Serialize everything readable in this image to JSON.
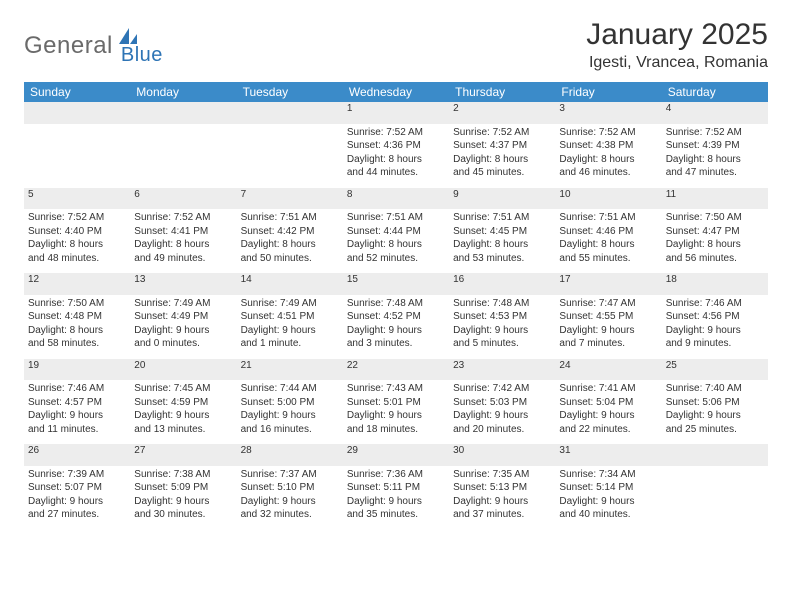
{
  "brand": {
    "part1": "General",
    "part2": "Blue"
  },
  "title": "January 2025",
  "location": "Igesti, Vrancea, Romania",
  "colors": {
    "header_bg": "#3b8bc9",
    "header_fg": "#ffffff",
    "row_border": "#2e74b5",
    "daynum_bg": "#ededed",
    "text": "#333333",
    "logo_gray": "#6a6a6a",
    "logo_blue": "#2e74b5",
    "page_bg": "#ffffff"
  },
  "day_headers": [
    "Sunday",
    "Monday",
    "Tuesday",
    "Wednesday",
    "Thursday",
    "Friday",
    "Saturday"
  ],
  "weeks": [
    {
      "nums": [
        "",
        "",
        "",
        "1",
        "2",
        "3",
        "4"
      ],
      "cells": [
        null,
        null,
        null,
        {
          "sunrise": "Sunrise: 7:52 AM",
          "sunset": "Sunset: 4:36 PM",
          "day1": "Daylight: 8 hours",
          "day2": "and 44 minutes."
        },
        {
          "sunrise": "Sunrise: 7:52 AM",
          "sunset": "Sunset: 4:37 PM",
          "day1": "Daylight: 8 hours",
          "day2": "and 45 minutes."
        },
        {
          "sunrise": "Sunrise: 7:52 AM",
          "sunset": "Sunset: 4:38 PM",
          "day1": "Daylight: 8 hours",
          "day2": "and 46 minutes."
        },
        {
          "sunrise": "Sunrise: 7:52 AM",
          "sunset": "Sunset: 4:39 PM",
          "day1": "Daylight: 8 hours",
          "day2": "and 47 minutes."
        }
      ]
    },
    {
      "nums": [
        "5",
        "6",
        "7",
        "8",
        "9",
        "10",
        "11"
      ],
      "cells": [
        {
          "sunrise": "Sunrise: 7:52 AM",
          "sunset": "Sunset: 4:40 PM",
          "day1": "Daylight: 8 hours",
          "day2": "and 48 minutes."
        },
        {
          "sunrise": "Sunrise: 7:52 AM",
          "sunset": "Sunset: 4:41 PM",
          "day1": "Daylight: 8 hours",
          "day2": "and 49 minutes."
        },
        {
          "sunrise": "Sunrise: 7:51 AM",
          "sunset": "Sunset: 4:42 PM",
          "day1": "Daylight: 8 hours",
          "day2": "and 50 minutes."
        },
        {
          "sunrise": "Sunrise: 7:51 AM",
          "sunset": "Sunset: 4:44 PM",
          "day1": "Daylight: 8 hours",
          "day2": "and 52 minutes."
        },
        {
          "sunrise": "Sunrise: 7:51 AM",
          "sunset": "Sunset: 4:45 PM",
          "day1": "Daylight: 8 hours",
          "day2": "and 53 minutes."
        },
        {
          "sunrise": "Sunrise: 7:51 AM",
          "sunset": "Sunset: 4:46 PM",
          "day1": "Daylight: 8 hours",
          "day2": "and 55 minutes."
        },
        {
          "sunrise": "Sunrise: 7:50 AM",
          "sunset": "Sunset: 4:47 PM",
          "day1": "Daylight: 8 hours",
          "day2": "and 56 minutes."
        }
      ]
    },
    {
      "nums": [
        "12",
        "13",
        "14",
        "15",
        "16",
        "17",
        "18"
      ],
      "cells": [
        {
          "sunrise": "Sunrise: 7:50 AM",
          "sunset": "Sunset: 4:48 PM",
          "day1": "Daylight: 8 hours",
          "day2": "and 58 minutes."
        },
        {
          "sunrise": "Sunrise: 7:49 AM",
          "sunset": "Sunset: 4:49 PM",
          "day1": "Daylight: 9 hours",
          "day2": "and 0 minutes."
        },
        {
          "sunrise": "Sunrise: 7:49 AM",
          "sunset": "Sunset: 4:51 PM",
          "day1": "Daylight: 9 hours",
          "day2": "and 1 minute."
        },
        {
          "sunrise": "Sunrise: 7:48 AM",
          "sunset": "Sunset: 4:52 PM",
          "day1": "Daylight: 9 hours",
          "day2": "and 3 minutes."
        },
        {
          "sunrise": "Sunrise: 7:48 AM",
          "sunset": "Sunset: 4:53 PM",
          "day1": "Daylight: 9 hours",
          "day2": "and 5 minutes."
        },
        {
          "sunrise": "Sunrise: 7:47 AM",
          "sunset": "Sunset: 4:55 PM",
          "day1": "Daylight: 9 hours",
          "day2": "and 7 minutes."
        },
        {
          "sunrise": "Sunrise: 7:46 AM",
          "sunset": "Sunset: 4:56 PM",
          "day1": "Daylight: 9 hours",
          "day2": "and 9 minutes."
        }
      ]
    },
    {
      "nums": [
        "19",
        "20",
        "21",
        "22",
        "23",
        "24",
        "25"
      ],
      "cells": [
        {
          "sunrise": "Sunrise: 7:46 AM",
          "sunset": "Sunset: 4:57 PM",
          "day1": "Daylight: 9 hours",
          "day2": "and 11 minutes."
        },
        {
          "sunrise": "Sunrise: 7:45 AM",
          "sunset": "Sunset: 4:59 PM",
          "day1": "Daylight: 9 hours",
          "day2": "and 13 minutes."
        },
        {
          "sunrise": "Sunrise: 7:44 AM",
          "sunset": "Sunset: 5:00 PM",
          "day1": "Daylight: 9 hours",
          "day2": "and 16 minutes."
        },
        {
          "sunrise": "Sunrise: 7:43 AM",
          "sunset": "Sunset: 5:01 PM",
          "day1": "Daylight: 9 hours",
          "day2": "and 18 minutes."
        },
        {
          "sunrise": "Sunrise: 7:42 AM",
          "sunset": "Sunset: 5:03 PM",
          "day1": "Daylight: 9 hours",
          "day2": "and 20 minutes."
        },
        {
          "sunrise": "Sunrise: 7:41 AM",
          "sunset": "Sunset: 5:04 PM",
          "day1": "Daylight: 9 hours",
          "day2": "and 22 minutes."
        },
        {
          "sunrise": "Sunrise: 7:40 AM",
          "sunset": "Sunset: 5:06 PM",
          "day1": "Daylight: 9 hours",
          "day2": "and 25 minutes."
        }
      ]
    },
    {
      "nums": [
        "26",
        "27",
        "28",
        "29",
        "30",
        "31",
        ""
      ],
      "cells": [
        {
          "sunrise": "Sunrise: 7:39 AM",
          "sunset": "Sunset: 5:07 PM",
          "day1": "Daylight: 9 hours",
          "day2": "and 27 minutes."
        },
        {
          "sunrise": "Sunrise: 7:38 AM",
          "sunset": "Sunset: 5:09 PM",
          "day1": "Daylight: 9 hours",
          "day2": "and 30 minutes."
        },
        {
          "sunrise": "Sunrise: 7:37 AM",
          "sunset": "Sunset: 5:10 PM",
          "day1": "Daylight: 9 hours",
          "day2": "and 32 minutes."
        },
        {
          "sunrise": "Sunrise: 7:36 AM",
          "sunset": "Sunset: 5:11 PM",
          "day1": "Daylight: 9 hours",
          "day2": "and 35 minutes."
        },
        {
          "sunrise": "Sunrise: 7:35 AM",
          "sunset": "Sunset: 5:13 PM",
          "day1": "Daylight: 9 hours",
          "day2": "and 37 minutes."
        },
        {
          "sunrise": "Sunrise: 7:34 AM",
          "sunset": "Sunset: 5:14 PM",
          "day1": "Daylight: 9 hours",
          "day2": "and 40 minutes."
        },
        null
      ]
    }
  ]
}
